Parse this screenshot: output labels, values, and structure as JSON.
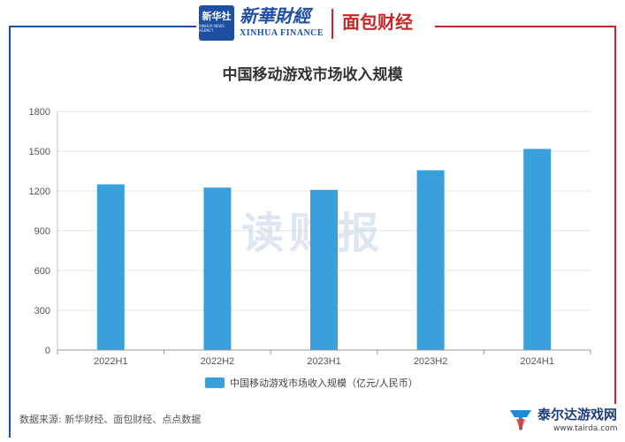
{
  "header": {
    "xinhua_badge": "新华社",
    "xinhua_badge_sub": "XINHUA NEWS AGENCY",
    "xinhua_finance_cn": "新華財經",
    "xinhua_finance_en": "XINHUA FINANCE",
    "mianbao": "面包财经"
  },
  "chart_data": {
    "type": "bar",
    "title": "中国移动游戏市场收入规模",
    "categories": [
      "2022H1",
      "2022H2",
      "2023H1",
      "2023H2",
      "2024H1"
    ],
    "series": [
      {
        "name": "中国移动游戏市场收入规模（亿元/人民币）",
        "values": [
          1250,
          1225,
          1208,
          1356,
          1517
        ]
      }
    ],
    "ylim": [
      0,
      1800
    ],
    "yticks": [
      0,
      300,
      600,
      900,
      1200,
      1500,
      1800
    ],
    "grid": true,
    "legend": "bottom",
    "bar_color": "#3aa0dc"
  },
  "watermark": "读财报",
  "source": "数据来源: 新华财经、面包财经、点点数据",
  "corner_logo": {
    "name": "泰尔达游戏网",
    "url": "www.tairda.com"
  },
  "colors": {
    "frame_left": "#1f4fa3",
    "frame_right": "#c62828",
    "grid": "#e6e6e6"
  }
}
